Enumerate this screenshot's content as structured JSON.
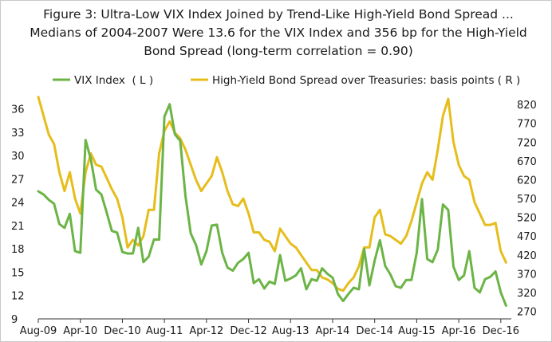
{
  "chart_data": {
    "type": "line",
    "title": "Figure 3: Ultra-Low VIX Index Joined by Trend-Like High-Yield Bond Spread ... Medians of 2004-2007 Were 13.6 for the VIX Index and 356 bp for the High-Yield Bond Spread (long-term correlation = 0.90)",
    "x_ticks": [
      "Aug-09",
      "Apr-10",
      "Dec-10",
      "Aug-11",
      "Apr-12",
      "Dec-12",
      "Aug-13",
      "Apr-14",
      "Dec-14",
      "Aug-15",
      "Apr-16",
      "Dec-16"
    ],
    "x_range": [
      "Aug-09",
      "Feb-17"
    ],
    "y_left": {
      "ticks": [
        9,
        12,
        15,
        18,
        21,
        24,
        27,
        30,
        33,
        36
      ],
      "range": [
        9,
        38
      ]
    },
    "y_right": {
      "ticks": [
        270,
        320,
        370,
        420,
        470,
        520,
        570,
        620,
        670,
        720,
        770,
        820
      ],
      "range": [
        250,
        850
      ]
    },
    "grid": false,
    "legend_position": "top",
    "series": [
      {
        "name": "VIX Index  ( L )",
        "axis": "left",
        "color": "#6bb445",
        "points": [
          [
            "2009-08",
            25.4
          ],
          [
            "2009-09",
            25.0
          ],
          [
            "2009-10",
            24.3
          ],
          [
            "2009-11",
            23.8
          ],
          [
            "2009-12",
            21.2
          ],
          [
            "2010-01",
            20.7
          ],
          [
            "2010-02",
            22.5
          ],
          [
            "2010-03",
            17.7
          ],
          [
            "2010-04",
            17.5
          ],
          [
            "2010-05",
            32.0
          ],
          [
            "2010-06",
            29.5
          ],
          [
            "2010-07",
            25.6
          ],
          [
            "2010-08",
            25.0
          ],
          [
            "2010-09",
            22.7
          ],
          [
            "2010-10",
            20.3
          ],
          [
            "2010-11",
            20.1
          ],
          [
            "2010-12",
            17.6
          ],
          [
            "2011-01",
            17.4
          ],
          [
            "2011-02",
            17.4
          ],
          [
            "2011-03",
            20.7
          ],
          [
            "2011-04",
            16.3
          ],
          [
            "2011-05",
            17.0
          ],
          [
            "2011-06",
            19.2
          ],
          [
            "2011-07",
            19.2
          ],
          [
            "2011-08",
            35.0
          ],
          [
            "2011-09",
            36.6
          ],
          [
            "2011-10",
            32.7
          ],
          [
            "2011-11",
            31.9
          ],
          [
            "2011-12",
            24.8
          ],
          [
            "2012-01",
            20.0
          ],
          [
            "2012-02",
            18.5
          ],
          [
            "2012-03",
            16.0
          ],
          [
            "2012-04",
            17.7
          ],
          [
            "2012-05",
            21.0
          ],
          [
            "2012-06",
            21.1
          ],
          [
            "2012-07",
            17.5
          ],
          [
            "2012-08",
            15.6
          ],
          [
            "2012-09",
            15.2
          ],
          [
            "2012-10",
            16.2
          ],
          [
            "2012-11",
            16.7
          ],
          [
            "2012-12",
            17.5
          ],
          [
            "2013-01",
            13.6
          ],
          [
            "2013-02",
            14.1
          ],
          [
            "2013-03",
            12.9
          ],
          [
            "2013-04",
            13.8
          ],
          [
            "2013-05",
            13.5
          ],
          [
            "2013-06",
            17.2
          ],
          [
            "2013-07",
            13.9
          ],
          [
            "2013-08",
            14.2
          ],
          [
            "2013-09",
            14.6
          ],
          [
            "2013-10",
            15.5
          ],
          [
            "2013-11",
            12.8
          ],
          [
            "2013-12",
            14.1
          ],
          [
            "2014-01",
            13.9
          ],
          [
            "2014-02",
            15.5
          ],
          [
            "2014-03",
            14.8
          ],
          [
            "2014-04",
            14.3
          ],
          [
            "2014-05",
            12.2
          ],
          [
            "2014-06",
            11.3
          ],
          [
            "2014-07",
            12.2
          ],
          [
            "2014-08",
            13.0
          ],
          [
            "2014-09",
            12.8
          ],
          [
            "2014-10",
            18.0
          ],
          [
            "2014-11",
            13.3
          ],
          [
            "2014-12",
            16.5
          ],
          [
            "2015-01",
            19.1
          ],
          [
            "2015-02",
            15.8
          ],
          [
            "2015-03",
            14.7
          ],
          [
            "2015-04",
            13.2
          ],
          [
            "2015-05",
            13.0
          ],
          [
            "2015-06",
            14.0
          ],
          [
            "2015-07",
            14.0
          ],
          [
            "2015-08",
            17.5
          ],
          [
            "2015-09",
            24.4
          ],
          [
            "2015-10",
            16.7
          ],
          [
            "2015-11",
            16.3
          ],
          [
            "2015-12",
            17.9
          ],
          [
            "2016-01",
            23.7
          ],
          [
            "2016-02",
            23.0
          ],
          [
            "2016-03",
            15.7
          ],
          [
            "2016-04",
            14.0
          ],
          [
            "2016-05",
            14.6
          ],
          [
            "2016-06",
            17.7
          ],
          [
            "2016-07",
            13.0
          ],
          [
            "2016-08",
            12.4
          ],
          [
            "2016-09",
            14.1
          ],
          [
            "2016-10",
            14.4
          ],
          [
            "2016-11",
            15.1
          ],
          [
            "2016-12",
            12.4
          ],
          [
            "2017-01",
            10.7
          ]
        ]
      },
      {
        "name": "High-Yield Bond Spread over Treasuries: basis points ( R )",
        "axis": "right",
        "color": "#e6bd1b",
        "points": [
          [
            "2009-08",
            840
          ],
          [
            "2009-09",
            790
          ],
          [
            "2009-10",
            740
          ],
          [
            "2009-11",
            715
          ],
          [
            "2009-12",
            640
          ],
          [
            "2010-01",
            590
          ],
          [
            "2010-02",
            640
          ],
          [
            "2010-03",
            570
          ],
          [
            "2010-04",
            530
          ],
          [
            "2010-05",
            640
          ],
          [
            "2010-06",
            690
          ],
          [
            "2010-07",
            660
          ],
          [
            "2010-08",
            655
          ],
          [
            "2010-09",
            625
          ],
          [
            "2010-10",
            595
          ],
          [
            "2010-11",
            570
          ],
          [
            "2010-12",
            520
          ],
          [
            "2011-01",
            440
          ],
          [
            "2011-02",
            460
          ],
          [
            "2011-03",
            445
          ],
          [
            "2011-04",
            470
          ],
          [
            "2011-05",
            540
          ],
          [
            "2011-06",
            540
          ],
          [
            "2011-07",
            690
          ],
          [
            "2011-08",
            750
          ],
          [
            "2011-09",
            775
          ],
          [
            "2011-10",
            745
          ],
          [
            "2011-11",
            730
          ],
          [
            "2011-12",
            700
          ],
          [
            "2012-01",
            660
          ],
          [
            "2012-02",
            620
          ],
          [
            "2012-03",
            590
          ],
          [
            "2012-04",
            610
          ],
          [
            "2012-05",
            630
          ],
          [
            "2012-06",
            680
          ],
          [
            "2012-07",
            640
          ],
          [
            "2012-08",
            590
          ],
          [
            "2012-09",
            555
          ],
          [
            "2012-10",
            550
          ],
          [
            "2012-11",
            570
          ],
          [
            "2012-12",
            530
          ],
          [
            "2013-01",
            480
          ],
          [
            "2013-02",
            480
          ],
          [
            "2013-03",
            460
          ],
          [
            "2013-04",
            455
          ],
          [
            "2013-05",
            430
          ],
          [
            "2013-06",
            490
          ],
          [
            "2013-07",
            470
          ],
          [
            "2013-08",
            450
          ],
          [
            "2013-09",
            440
          ],
          [
            "2013-10",
            420
          ],
          [
            "2013-11",
            400
          ],
          [
            "2013-12",
            380
          ],
          [
            "2014-01",
            380
          ],
          [
            "2014-02",
            360
          ],
          [
            "2014-03",
            355
          ],
          [
            "2014-04",
            345
          ],
          [
            "2014-05",
            330
          ],
          [
            "2014-06",
            325
          ],
          [
            "2014-07",
            345
          ],
          [
            "2014-08",
            360
          ],
          [
            "2014-09",
            390
          ],
          [
            "2014-10",
            440
          ],
          [
            "2014-11",
            440
          ],
          [
            "2014-12",
            520
          ],
          [
            "2015-01",
            540
          ],
          [
            "2015-02",
            475
          ],
          [
            "2015-03",
            470
          ],
          [
            "2015-04",
            460
          ],
          [
            "2015-05",
            450
          ],
          [
            "2015-06",
            470
          ],
          [
            "2015-07",
            510
          ],
          [
            "2015-08",
            560
          ],
          [
            "2015-09",
            610
          ],
          [
            "2015-10",
            640
          ],
          [
            "2015-11",
            620
          ],
          [
            "2015-12",
            700
          ],
          [
            "2016-01",
            790
          ],
          [
            "2016-02",
            835
          ],
          [
            "2016-03",
            720
          ],
          [
            "2016-04",
            660
          ],
          [
            "2016-05",
            630
          ],
          [
            "2016-06",
            620
          ],
          [
            "2016-07",
            560
          ],
          [
            "2016-08",
            530
          ],
          [
            "2016-09",
            500
          ],
          [
            "2016-10",
            500
          ],
          [
            "2016-11",
            505
          ],
          [
            "2016-12",
            430
          ],
          [
            "2017-01",
            400
          ]
        ]
      }
    ]
  }
}
